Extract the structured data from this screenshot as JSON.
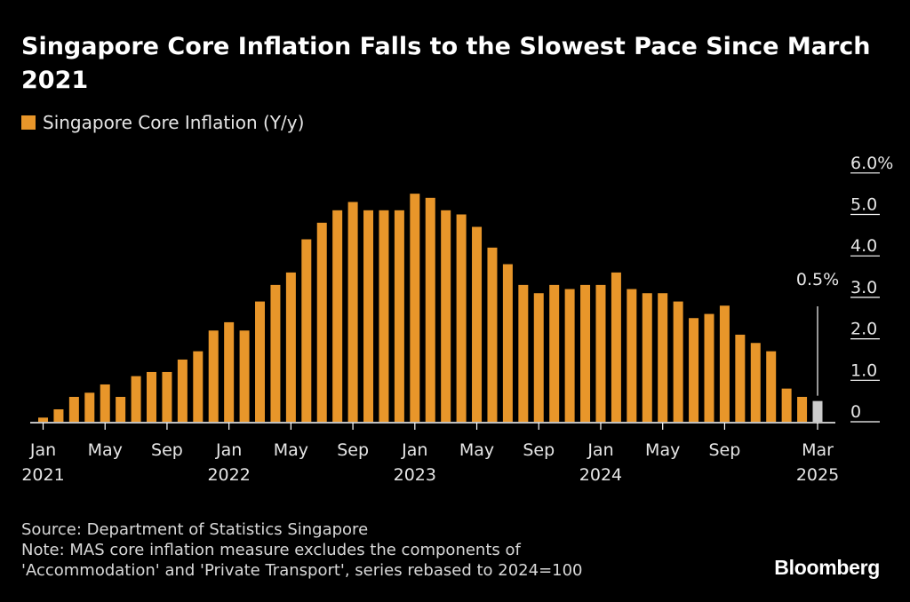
{
  "colors": {
    "bar": "#e8962a",
    "highlight": "#cccccc",
    "axis": "#ffffff",
    "text": "#e6e6e6"
  },
  "chart_data": {
    "type": "bar",
    "title": "Singapore Core Inflation Falls to the Slowest Pace Since March 2021",
    "legend": [
      "Singapore Core Inflation (Y/y)"
    ],
    "series": [
      {
        "name": "Singapore Core Inflation (Y/y)",
        "values": [
          0.1,
          0.3,
          0.6,
          0.7,
          0.9,
          0.6,
          1.1,
          1.2,
          1.2,
          1.5,
          1.7,
          2.2,
          2.4,
          2.2,
          2.9,
          3.3,
          3.6,
          4.4,
          4.8,
          5.1,
          5.3,
          5.1,
          5.1,
          5.1,
          5.5,
          5.4,
          5.1,
          5.0,
          4.7,
          4.2,
          3.8,
          3.3,
          3.1,
          3.3,
          3.2,
          3.3,
          3.3,
          3.6,
          3.2,
          3.1,
          3.1,
          2.9,
          2.5,
          2.6,
          2.8,
          2.1,
          1.9,
          1.7,
          0.8,
          0.6,
          0.5
        ]
      }
    ],
    "start": {
      "year": 2021,
      "month": "Jan"
    },
    "ylim": [
      0,
      6
    ],
    "yticks": [
      {
        "value": 0,
        "label": "0"
      },
      {
        "value": 1,
        "label": "1.0"
      },
      {
        "value": 2,
        "label": "2.0"
      },
      {
        "value": 3,
        "label": "3.0"
      },
      {
        "value": 4,
        "label": "4.0"
      },
      {
        "value": 5,
        "label": "5.0"
      },
      {
        "value": 6,
        "label": "6.0%"
      }
    ],
    "xticks": [
      {
        "index": 0,
        "month": "Jan",
        "year": "2021"
      },
      {
        "index": 4,
        "month": "May",
        "year": ""
      },
      {
        "index": 8,
        "month": "Sep",
        "year": ""
      },
      {
        "index": 12,
        "month": "Jan",
        "year": "2022"
      },
      {
        "index": 16,
        "month": "May",
        "year": ""
      },
      {
        "index": 20,
        "month": "Sep",
        "year": ""
      },
      {
        "index": 24,
        "month": "Jan",
        "year": "2023"
      },
      {
        "index": 28,
        "month": "May",
        "year": ""
      },
      {
        "index": 32,
        "month": "Sep",
        "year": ""
      },
      {
        "index": 36,
        "month": "Jan",
        "year": "2024"
      },
      {
        "index": 40,
        "month": "May",
        "year": ""
      },
      {
        "index": 44,
        "month": "Sep",
        "year": ""
      },
      {
        "index": 50,
        "month": "Mar",
        "year": "2025"
      }
    ],
    "highlight": {
      "index": 50,
      "label": "0.5%"
    }
  },
  "footer": {
    "source": "Source: Department of Statistics Singapore",
    "note_line1": "Note: MAS core inflation measure excludes the components of",
    "note_line2": "'Accommodation' and 'Private Transport', series rebased to 2024=100"
  },
  "brand": "Bloomberg"
}
